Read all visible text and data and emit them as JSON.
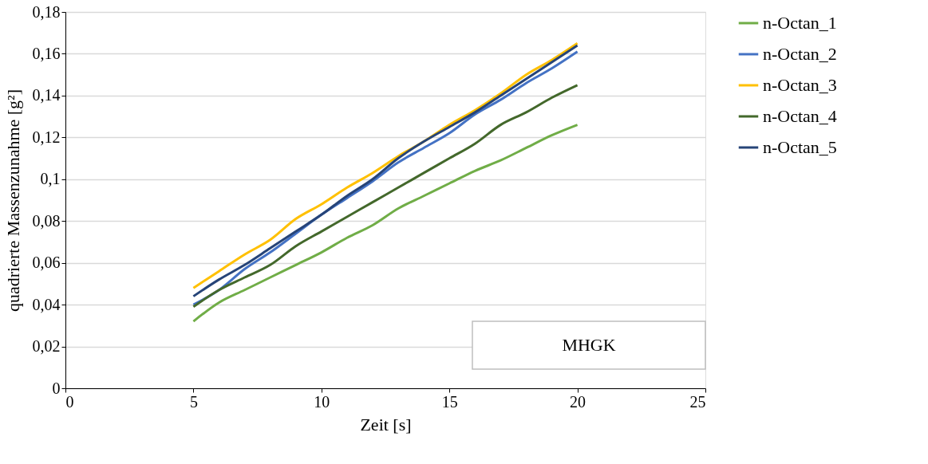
{
  "chart_data": {
    "type": "line",
    "xlabel": "Zeit [s]",
    "ylabel": "quadrierte Massenzunahme [g²]",
    "x": [
      5,
      6,
      7,
      8,
      9,
      10,
      11,
      12,
      13,
      14,
      15,
      16,
      17,
      18,
      19,
      20
    ],
    "series": [
      {
        "name": "n-Octan_1",
        "color": "#70ad47",
        "values": [
          0.032,
          0.041,
          0.047,
          0.053,
          0.059,
          0.065,
          0.072,
          0.078,
          0.086,
          0.092,
          0.098,
          0.104,
          0.109,
          0.115,
          0.121,
          0.126
        ]
      },
      {
        "name": "n-Octan_2",
        "color": "#4472c4",
        "values": [
          0.04,
          0.047,
          0.057,
          0.065,
          0.074,
          0.083,
          0.091,
          0.099,
          0.108,
          0.115,
          0.122,
          0.131,
          0.138,
          0.146,
          0.153,
          0.161
        ]
      },
      {
        "name": "n-Octan_3",
        "color": "#ffc000",
        "values": [
          0.048,
          0.056,
          0.064,
          0.071,
          0.081,
          0.088,
          0.096,
          0.103,
          0.111,
          0.118,
          0.126,
          0.133,
          0.141,
          0.15,
          0.157,
          0.165
        ]
      },
      {
        "name": "n-Octan_4",
        "color": "#43682b",
        "values": [
          0.039,
          0.047,
          0.053,
          0.059,
          0.068,
          0.075,
          0.082,
          0.089,
          0.096,
          0.103,
          0.11,
          0.117,
          0.126,
          0.132,
          0.139,
          0.145
        ]
      },
      {
        "name": "n-Octan_5",
        "color": "#264478",
        "values": [
          0.044,
          0.052,
          0.059,
          0.067,
          0.075,
          0.083,
          0.092,
          0.1,
          0.11,
          0.118,
          0.125,
          0.132,
          0.14,
          0.148,
          0.156,
          0.164
        ]
      }
    ],
    "xlim": [
      0,
      25
    ],
    "xticks": [
      0,
      5,
      10,
      15,
      20,
      25
    ],
    "ylim": [
      0,
      0.18
    ],
    "yticks": [
      0,
      {
        "value": 0.02,
        "label": "0,02"
      },
      {
        "value": 0.04,
        "label": "0,04"
      },
      {
        "value": 0.06,
        "label": "0,06"
      },
      {
        "value": 0.08,
        "label": "0,08"
      },
      {
        "value": 0.1,
        "label": "0,1"
      },
      {
        "value": 0.12,
        "label": "0,12"
      },
      {
        "value": 0.14,
        "label": "0,14"
      },
      {
        "value": 0.16,
        "label": "0,16"
      },
      {
        "value": 0.18,
        "label": "0,18"
      }
    ],
    "grid": "y",
    "legend": "right",
    "marker": "none",
    "line_style": "solid",
    "annotations": [
      "MHGK"
    ]
  }
}
